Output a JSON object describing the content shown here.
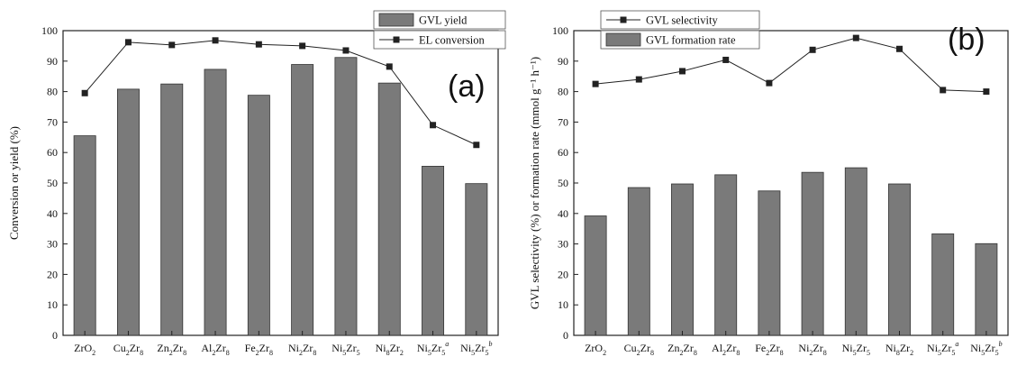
{
  "chart_data": [
    {
      "type": "bar",
      "panel_label": "(a)",
      "categories": [
        {
          "base": "ZrO",
          "sub": "2",
          "mid": "",
          "sub2": "",
          "sup": ""
        },
        {
          "base": "Cu",
          "sub": "2",
          "mid": "Zr",
          "sub2": "8",
          "sup": ""
        },
        {
          "base": "Zn",
          "sub": "2",
          "mid": "Zr",
          "sub2": "8",
          "sup": ""
        },
        {
          "base": "Al",
          "sub": "2",
          "mid": "Zr",
          "sub2": "8",
          "sup": ""
        },
        {
          "base": "Fe",
          "sub": "2",
          "mid": "Zr",
          "sub2": "8",
          "sup": ""
        },
        {
          "base": "Ni",
          "sub": "2",
          "mid": "Zr",
          "sub2": "8",
          "sup": ""
        },
        {
          "base": "Ni",
          "sub": "5",
          "mid": "Zr",
          "sub2": "5",
          "sup": ""
        },
        {
          "base": "Ni",
          "sub": "8",
          "mid": "Zr",
          "sub2": "2",
          "sup": ""
        },
        {
          "base": "Ni",
          "sub": "5",
          "mid": "Zr",
          "sub2": "5",
          "sup": "a"
        },
        {
          "base": "Ni",
          "sub": "5",
          "mid": "Zr",
          "sub2": "5",
          "sup": "b"
        }
      ],
      "series": [
        {
          "name": "GVL yield",
          "kind": "bar",
          "values": [
            65.5,
            80.8,
            82.5,
            87.3,
            78.8,
            88.9,
            91.2,
            82.8,
            55.5,
            49.8
          ]
        },
        {
          "name": "EL conversion",
          "kind": "line",
          "values": [
            79.5,
            96.2,
            95.3,
            96.8,
            95.5,
            95.0,
            93.5,
            88.2,
            69.0,
            62.5
          ]
        }
      ],
      "ylabel": "Conversion or yield (%)",
      "ylim": [
        0,
        100
      ],
      "yticks": [
        0,
        10,
        20,
        30,
        40,
        50,
        60,
        70,
        80,
        90,
        100
      ],
      "legend_position": "top-right",
      "colors": {
        "bar": "#7a7a7a",
        "line": "#222222"
      }
    },
    {
      "type": "bar",
      "panel_label": "(b)",
      "categories": [
        {
          "base": "ZrO",
          "sub": "2",
          "mid": "",
          "sub2": "",
          "sup": ""
        },
        {
          "base": "Cu",
          "sub": "2",
          "mid": "Zr",
          "sub2": "8",
          "sup": ""
        },
        {
          "base": "Zn",
          "sub": "2",
          "mid": "Zr",
          "sub2": "8",
          "sup": ""
        },
        {
          "base": "Al",
          "sub": "2",
          "mid": "Zr",
          "sub2": "8",
          "sup": ""
        },
        {
          "base": "Fe",
          "sub": "2",
          "mid": "Zr",
          "sub2": "8",
          "sup": ""
        },
        {
          "base": "Ni",
          "sub": "2",
          "mid": "Zr",
          "sub2": "8",
          "sup": ""
        },
        {
          "base": "Ni",
          "sub": "5",
          "mid": "Zr",
          "sub2": "5",
          "sup": ""
        },
        {
          "base": "Ni",
          "sub": "8",
          "mid": "Zr",
          "sub2": "2",
          "sup": ""
        },
        {
          "base": "Ni",
          "sub": "5",
          "mid": "Zr",
          "sub2": "5",
          "sup": "a"
        },
        {
          "base": "Ni",
          "sub": "5",
          "mid": "Zr",
          "sub2": "5",
          "sup": "b"
        }
      ],
      "series": [
        {
          "name": "GVL formation rate",
          "kind": "bar",
          "values": [
            39.2,
            48.5,
            49.7,
            52.7,
            47.4,
            53.5,
            55.0,
            49.7,
            33.3,
            30.1
          ]
        },
        {
          "name": "GVL selectivity",
          "kind": "line",
          "values": [
            82.5,
            84.0,
            86.7,
            90.4,
            82.8,
            93.7,
            97.6,
            94.0,
            80.5,
            80.0
          ]
        }
      ],
      "ylabel": "GVL selectivity (%) or formation rate (mmol g⁻¹ h⁻¹)",
      "ylim": [
        0,
        100
      ],
      "yticks": [
        0,
        10,
        20,
        30,
        40,
        50,
        60,
        70,
        80,
        90,
        100
      ],
      "legend_position": "top-left",
      "colors": {
        "bar": "#7a7a7a",
        "line": "#222222"
      }
    }
  ]
}
